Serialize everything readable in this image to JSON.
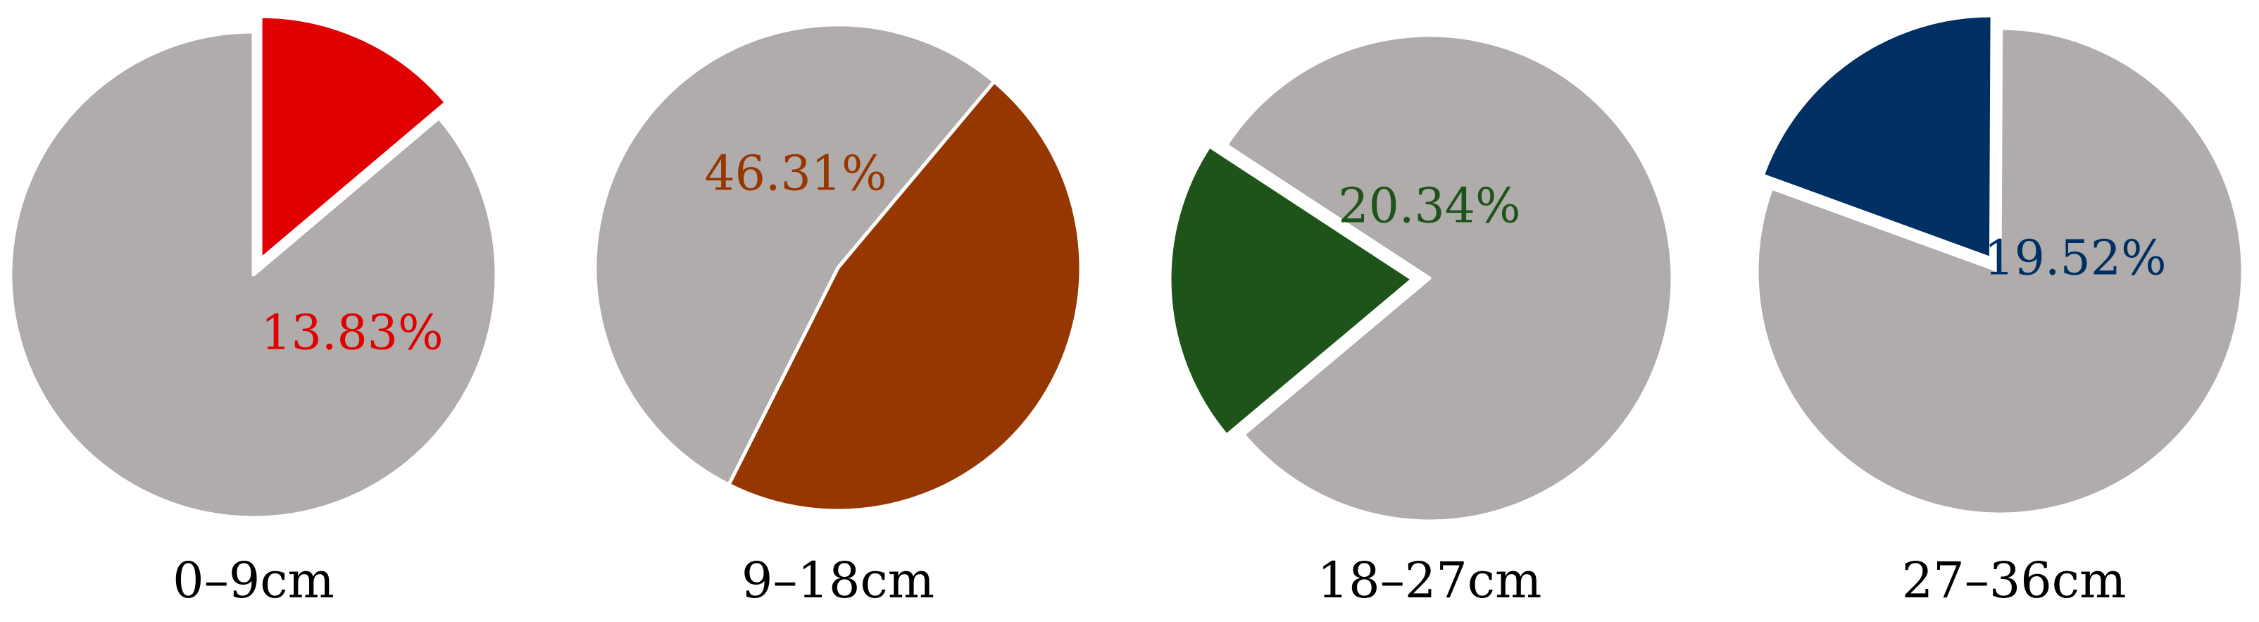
{
  "chart_data": [
    {
      "type": "pie",
      "category_label": "0–9cm",
      "slices": [
        {
          "value": 13.83,
          "label": "13.83%",
          "color": "#e00000",
          "highlighted": true
        },
        {
          "value": 86.17,
          "label": "",
          "color": "#b0acab",
          "highlighted": false
        }
      ]
    },
    {
      "type": "pie",
      "category_label": "9–18cm",
      "slices": [
        {
          "value": 46.31,
          "label": "46.31%",
          "color": "#963600",
          "highlighted": true
        },
        {
          "value": 53.69,
          "label": "",
          "color": "#b0acab",
          "highlighted": false
        }
      ]
    },
    {
      "type": "pie",
      "category_label": "18–27cm",
      "slices": [
        {
          "value": 20.34,
          "label": "20.34%",
          "color": "#1e5419",
          "highlighted": true
        },
        {
          "value": 79.66,
          "label": "",
          "color": "#b0acab",
          "highlighted": false
        }
      ]
    },
    {
      "type": "pie",
      "category_label": "27–36cm",
      "slices": [
        {
          "value": 19.52,
          "label": "19.52%",
          "color": "#003063",
          "highlighted": true
        },
        {
          "value": 80.48,
          "label": "",
          "color": "#b0acab",
          "highlighted": false
        }
      ]
    }
  ]
}
